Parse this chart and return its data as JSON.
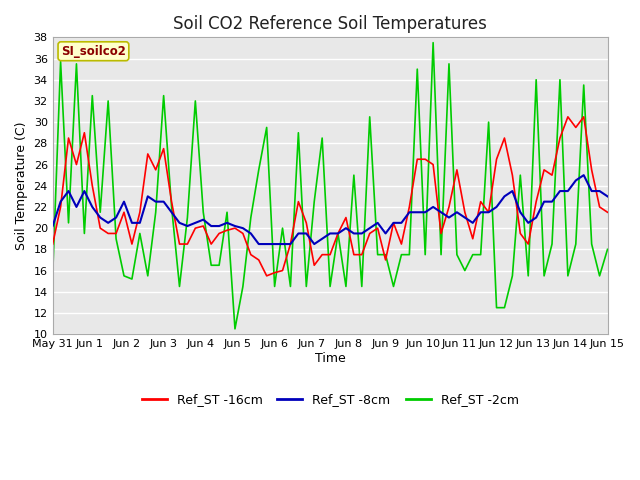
{
  "title": "Soil CO2 Reference Soil Temperatures",
  "xlabel": "Time",
  "ylabel": "Soil Temperature (C)",
  "annotation": "SI_soilco2",
  "ylim": [
    10,
    38
  ],
  "yticks": [
    10,
    12,
    14,
    16,
    18,
    20,
    22,
    24,
    26,
    28,
    30,
    32,
    34,
    36,
    38
  ],
  "xtick_labels": [
    "May 31",
    "Jun 1",
    "Jun 2",
    "Jun 3",
    "Jun 4",
    "Jun 5",
    "Jun 6",
    "Jun 7",
    "Jun 8",
    "Jun 9",
    "Jun 10",
    "Jun 11",
    "Jun 12",
    "Jun 13",
    "Jun 14",
    "Jun 15"
  ],
  "bg_color": "#e8e8e8",
  "grid_color": "#ffffff",
  "title_fontsize": 12,
  "legend_labels": [
    "Ref_ST -16cm",
    "Ref_ST -8cm",
    "Ref_ST -2cm"
  ],
  "legend_colors": [
    "#ff0000",
    "#0000bb",
    "#00cc00"
  ],
  "ref_st_16cm": [
    18.5,
    22.0,
    28.5,
    26.0,
    29.0,
    24.0,
    20.0,
    19.5,
    19.5,
    21.5,
    18.5,
    21.5,
    27.0,
    25.5,
    27.5,
    22.5,
    18.5,
    18.5,
    20.0,
    20.2,
    18.5,
    19.5,
    19.8,
    20.0,
    19.5,
    17.5,
    17.0,
    15.5,
    15.8,
    16.0,
    18.5,
    22.5,
    20.5,
    16.5,
    17.5,
    17.5,
    19.5,
    21.0,
    17.5,
    17.5,
    19.5,
    20.0,
    17.0,
    20.5,
    18.5,
    22.0,
    26.5,
    26.5,
    26.0,
    19.5,
    22.0,
    25.5,
    21.5,
    19.0,
    22.5,
    21.5,
    26.5,
    28.5,
    25.0,
    19.5,
    18.5,
    22.5,
    25.5,
    25.0,
    28.5,
    30.5,
    29.5,
    30.5,
    25.5,
    22.0,
    21.5
  ],
  "ref_st_8cm": [
    20.2,
    22.5,
    23.5,
    22.0,
    23.5,
    22.0,
    21.0,
    20.5,
    21.0,
    22.5,
    20.5,
    20.5,
    23.0,
    22.5,
    22.5,
    21.5,
    20.5,
    20.2,
    20.5,
    20.8,
    20.2,
    20.2,
    20.5,
    20.2,
    20.0,
    19.5,
    18.5,
    18.5,
    18.5,
    18.5,
    18.5,
    19.5,
    19.5,
    18.5,
    19.0,
    19.5,
    19.5,
    20.0,
    19.5,
    19.5,
    20.0,
    20.5,
    19.5,
    20.5,
    20.5,
    21.5,
    21.5,
    21.5,
    22.0,
    21.5,
    21.0,
    21.5,
    21.0,
    20.5,
    21.5,
    21.5,
    22.0,
    23.0,
    23.5,
    21.5,
    20.5,
    21.0,
    22.5,
    22.5,
    23.5,
    23.5,
    24.5,
    25.0,
    23.5,
    23.5,
    23.0
  ],
  "ref_st_2cm": [
    15.5,
    35.7,
    20.5,
    35.5,
    19.5,
    32.5,
    21.5,
    32.0,
    19.0,
    15.5,
    15.2,
    19.5,
    15.5,
    21.5,
    32.5,
    22.0,
    14.5,
    21.0,
    32.0,
    21.5,
    16.5,
    16.5,
    21.5,
    10.5,
    14.5,
    21.0,
    25.5,
    29.5,
    14.5,
    20.0,
    14.5,
    29.0,
    14.5,
    22.5,
    28.5,
    14.5,
    19.5,
    14.5,
    25.0,
    14.5,
    30.5,
    17.5,
    17.5,
    14.5,
    17.5,
    17.5,
    35.0,
    17.5,
    37.5,
    17.5,
    35.5,
    17.5,
    16.0,
    17.5,
    17.5,
    30.0,
    12.5,
    12.5,
    15.5,
    25.0,
    15.5,
    34.0,
    15.5,
    18.5,
    34.0,
    15.5,
    18.5,
    33.5,
    18.5,
    15.5,
    18.0
  ]
}
